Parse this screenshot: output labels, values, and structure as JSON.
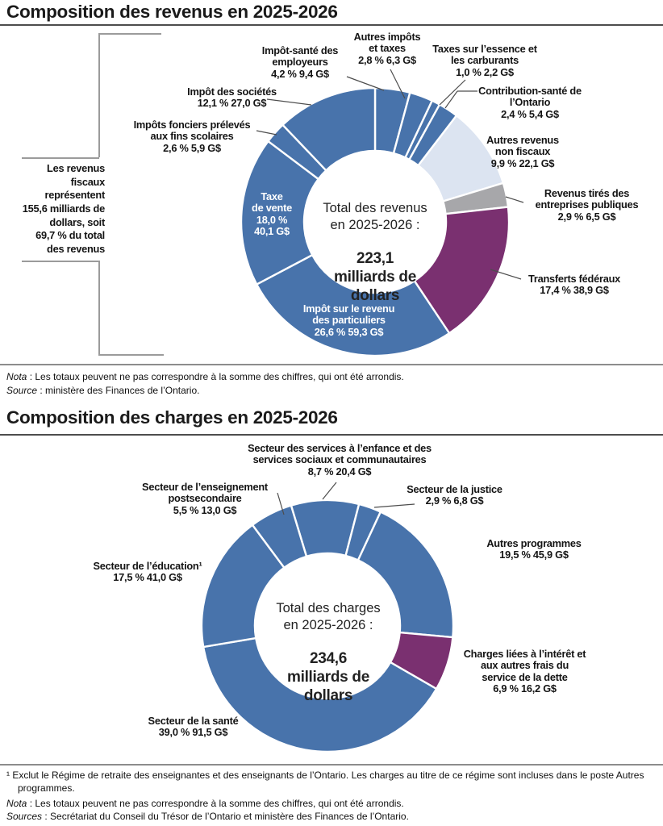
{
  "colors": {
    "blue": "#4873ab",
    "light_blue": "#dce4f1",
    "grey": "#a7a7aa",
    "purple": "#7a3070",
    "leader": "#4d4d4d",
    "bracket": "#9b9b9b"
  },
  "section1": {
    "title": "Composition des revenus en 2025-2026",
    "notes": [
      {
        "prefix": "Nota",
        "text": " : Les totaux peuvent ne pas correspondre à la somme des chiffres, qui ont été arrondis."
      },
      {
        "prefix": "Source",
        "text": " : ministère des Finances de l’Ontario."
      }
    ]
  },
  "section2": {
    "title": "Composition des charges en 2025-2026",
    "footnote": "¹ Exclut le Régime de retraite des enseignantes et des enseignants de l’Ontario. Les charges au titre de ce régime sont incluses dans le poste Autres programmes.",
    "notes": [
      {
        "prefix": "Nota",
        "text": " : Les totaux peuvent ne pas correspondre à la somme des chiffres, qui ont été arrondis."
      },
      {
        "prefix": "Sources",
        "text": " : Secrétariat du Conseil du Trésor de l’Ontario et ministère des Finances de l’Ontario."
      }
    ]
  },
  "chart_data": [
    {
      "type": "pie",
      "subtype": "donut",
      "title": "Composition des revenus en 2025-2026",
      "total": "223,1 milliards de dollars",
      "center_label": "Total des revenus\nen 2025-2026 :",
      "center_value": "223,1\nmilliards de\ndollars",
      "start_angle_deg": 0,
      "legend_position": "callout-labels",
      "segments": [
        {
          "name": "impot_sante_employeurs",
          "label": "Impôt-santé des employeurs",
          "pct": 4.2,
          "value": "9,4 G$",
          "color": "blue"
        },
        {
          "name": "autres_impots_taxes",
          "label": "Autres impôts et taxes",
          "pct": 2.8,
          "value": "6,3 G$",
          "color": "blue"
        },
        {
          "name": "taxes_essence_carburants",
          "label": "Taxes sur l’essence et les carburants",
          "pct": 1.0,
          "value": "2,2 G$",
          "color": "blue"
        },
        {
          "name": "contribution_sante_ontario",
          "label": "Contribution-santé de l’Ontario",
          "pct": 2.4,
          "value": "5,4 G$",
          "color": "blue"
        },
        {
          "name": "autres_revenus_non_fiscaux",
          "label": "Autres revenus non fiscaux",
          "pct": 9.9,
          "value": "22,1 G$",
          "color": "light_blue"
        },
        {
          "name": "revenus_entreprises_publiques",
          "label": "Revenus tirés des entreprises publiques",
          "pct": 2.9,
          "value": "6,5 G$",
          "color": "grey"
        },
        {
          "name": "transferts_federaux",
          "label": "Transferts fédéraux",
          "pct": 17.4,
          "value": "38,9 G$",
          "color": "purple"
        },
        {
          "name": "impot_revenu_particuliers",
          "label": "Impôt sur le revenu des particuliers",
          "pct": 26.6,
          "value": "59,3 G$",
          "color": "blue"
        },
        {
          "name": "taxe_de_vente",
          "label": "Taxe de vente",
          "pct": 18.0,
          "value": "40,1 G$",
          "color": "blue"
        },
        {
          "name": "impots_fonciers_scolaires",
          "label": "Impôts fonciers prélevés aux fins scolaires",
          "pct": 2.6,
          "value": "5,9 G$",
          "color": "blue"
        },
        {
          "name": "impot_societes",
          "label": "Impôt des sociétés",
          "pct": 12.1,
          "value": "27,0 G$",
          "color": "blue"
        }
      ],
      "callouts": {
        "impot_sante": "Impôt-santé des\nemployeurs\n4,2 %  9,4 G$",
        "autres_impots": "Autres impôts\net taxes\n2,8 %  6,3 G$",
        "essence": "Taxes sur l’essence et\nles carburants\n1,0 %  2,2 G$",
        "contribution": "Contribution-santé de\nl’Ontario\n2,4 %  5,4 G$",
        "non_fiscaux": "Autres revenus\nnon fiscaux\n9,9 %  22,1 G$",
        "entreprises": "Revenus tirés des\nentreprises publiques\n2,9 %  6,5 G$",
        "transferts": "Transferts fédéraux\n17,4 %  38,9 G$",
        "societes": "Impôt des sociétés\n12,1 %  27,0 G$",
        "fonciers": "Impôts fonciers prélevés\naux fins scolaires\n2,6 %  5,9 G$",
        "vente": "Taxe\nde vente\n18,0 %\n40,1 G$",
        "particuliers": "Impôt sur le revenu\ndes particuliers\n26,6 %  59,3 G$"
      },
      "side_note": "Les revenus\nfiscaux\nreprésentent\n155,6 milliards de\ndollars, soit\n69,7 % du total\ndes revenus"
    },
    {
      "type": "pie",
      "subtype": "donut",
      "title": "Composition des charges en 2025-2026",
      "total": "234,6 milliards de dollars",
      "center_label": "Total des charges\nen 2025-2026 :",
      "center_value": "234,6\nmilliards de\ndollars",
      "start_angle_deg": -16.8,
      "legend_position": "callout-labels",
      "segments": [
        {
          "name": "services_enfance_communautaires",
          "label": "Secteur des services à l’enfance et des services sociaux et communautaires",
          "pct": 8.7,
          "value": "20,4 G$",
          "color": "blue"
        },
        {
          "name": "justice",
          "label": "Secteur de la justice",
          "pct": 2.9,
          "value": "6,8 G$",
          "color": "blue"
        },
        {
          "name": "autres_programmes",
          "label": "Autres programmes",
          "pct": 19.5,
          "value": "45,9 G$",
          "color": "blue"
        },
        {
          "name": "interet_service_dette",
          "label": "Charges liées à l’intérêt et aux autres frais du service de la dette",
          "pct": 6.9,
          "value": "16,2 G$",
          "color": "purple"
        },
        {
          "name": "sante",
          "label": "Secteur de la santé",
          "pct": 39.0,
          "value": "91,5 G$",
          "color": "blue"
        },
        {
          "name": "education",
          "label": "Secteur de l’éducation¹",
          "pct": 17.5,
          "value": "41,0 G$",
          "color": "blue"
        },
        {
          "name": "enseignement_postsecondaire",
          "label": "Secteur de l’enseignement postsecondaire",
          "pct": 5.5,
          "value": "13,0 G$",
          "color": "blue"
        }
      ],
      "callouts": {
        "enfance": "Secteur des services à l’enfance et des\nservices sociaux et communautaires\n8,7 %  20,4 G$",
        "justice": "Secteur de la justice\n2,9 %  6,8 G$",
        "postsecondaire": "Secteur de l’enseignement\npostsecondaire\n5,5 %  13,0 G$",
        "autres_programmes": "Autres programmes\n19,5 %  45,9 G$",
        "education": "Secteur de l’éducation¹\n17,5 %  41,0 G$",
        "interet": "Charges liées à l’intérêt et\naux autres frais du\nservice de la dette\n6,9 %  16,2 G$",
        "sante": "Secteur de la santé\n39,0 %  91,5 G$"
      }
    }
  ]
}
